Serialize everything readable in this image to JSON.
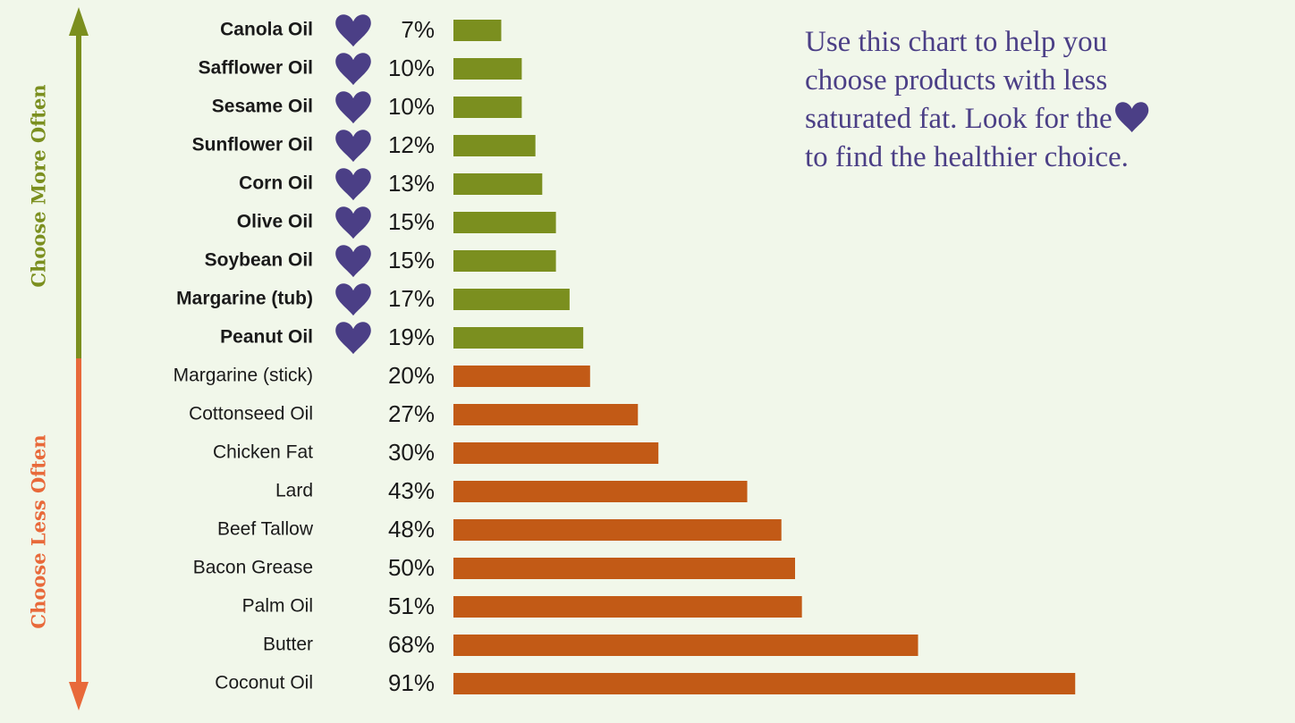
{
  "chart_data": {
    "type": "bar",
    "series": [
      {
        "name": "Choose More Often",
        "color": "#7b8f1f",
        "label_color": "#7b8f1f",
        "bold": true,
        "heart": true,
        "categories": [
          "Canola Oil",
          "Safflower Oil",
          "Sesame Oil",
          "Sunflower Oil",
          "Corn Oil",
          "Olive Oil",
          "Soybean Oil",
          "Margarine (tub)",
          "Peanut Oil"
        ],
        "values": [
          7,
          10,
          10,
          12,
          13,
          15,
          15,
          17,
          19
        ],
        "value_labels": [
          "7%",
          "10%",
          "10%",
          "12%",
          "13%",
          "15%",
          "15%",
          "17%",
          "19%"
        ]
      },
      {
        "name": "Choose Less Often",
        "color": "#c25a16",
        "label_color": "#e8693a",
        "bold": false,
        "heart": false,
        "categories": [
          "Margarine (stick)",
          "Cottonseed Oil",
          "Chicken Fat",
          "Lard",
          "Beef Tallow",
          "Bacon Grease",
          "Palm Oil",
          "Butter",
          "Coconut Oil"
        ],
        "values": [
          20,
          27,
          30,
          43,
          48,
          50,
          51,
          68,
          91
        ],
        "value_labels": [
          "20%",
          "27%",
          "30%",
          "43%",
          "48%",
          "50%",
          "51%",
          "68%",
          "91%"
        ]
      }
    ],
    "annotation_lines": [
      "Use this chart to help you",
      "choose products with less",
      "saturated fat. Look for the",
      "to find the healthier choice."
    ]
  }
}
